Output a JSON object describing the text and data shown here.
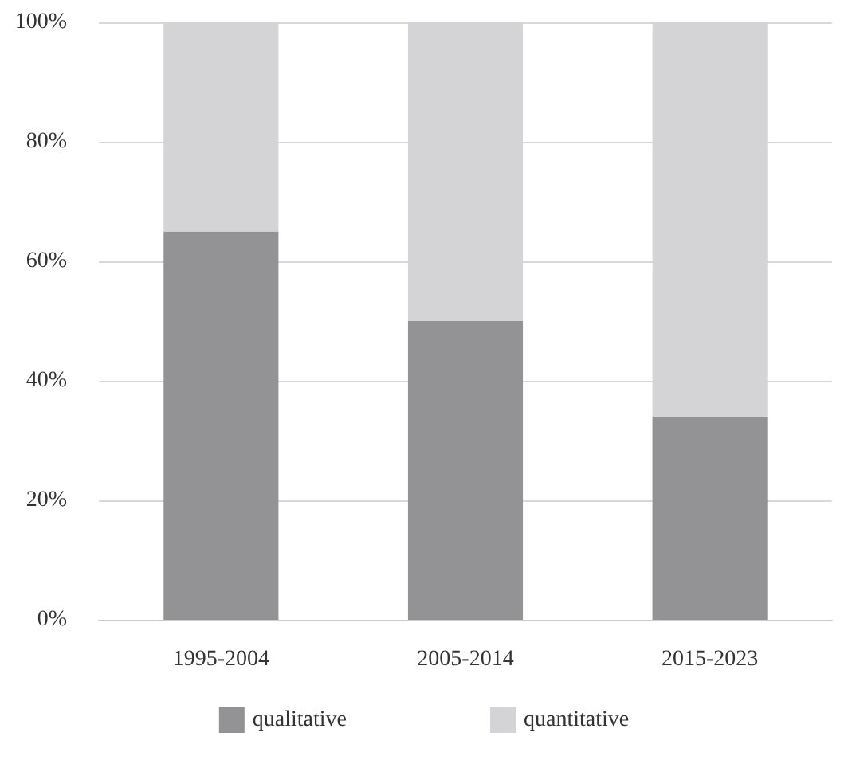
{
  "chart_data": {
    "type": "bar",
    "stacked": true,
    "categories": [
      "1995-2004",
      "2005-2014",
      "2015-2023"
    ],
    "series": [
      {
        "name": "qualitative",
        "color": "#939396",
        "values": [
          65,
          50,
          34
        ]
      },
      {
        "name": "quantitative",
        "color": "#d4d4d6",
        "values": [
          35,
          50,
          66
        ]
      }
    ],
    "ylim": [
      0,
      100
    ],
    "yticks": [
      {
        "value": 0,
        "label": "0%"
      },
      {
        "value": 20,
        "label": "20%"
      },
      {
        "value": 40,
        "label": "40%"
      },
      {
        "value": 60,
        "label": "60%"
      },
      {
        "value": 80,
        "label": "80%"
      },
      {
        "value": 100,
        "label": "100%"
      }
    ],
    "grid": "y",
    "legend": "bottom"
  }
}
